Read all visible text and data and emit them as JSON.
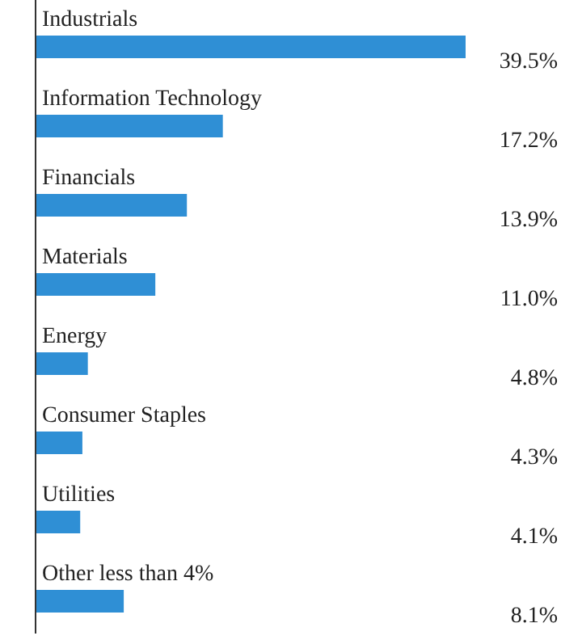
{
  "chart_data": {
    "type": "bar",
    "orientation": "horizontal",
    "categories": [
      "Industrials",
      "Information Technology",
      "Financials",
      "Materials",
      "Energy",
      "Consumer Staples",
      "Utilities",
      "Other less than 4%"
    ],
    "values": [
      39.5,
      17.2,
      13.9,
      11.0,
      4.8,
      4.3,
      4.1,
      8.1
    ],
    "color": "#2f8fd5",
    "value_labels": [
      "39.5%",
      "17.2%",
      "13.9%",
      "11.0%",
      "4.8%",
      "4.3%",
      "4.1%",
      "8.1%"
    ]
  }
}
